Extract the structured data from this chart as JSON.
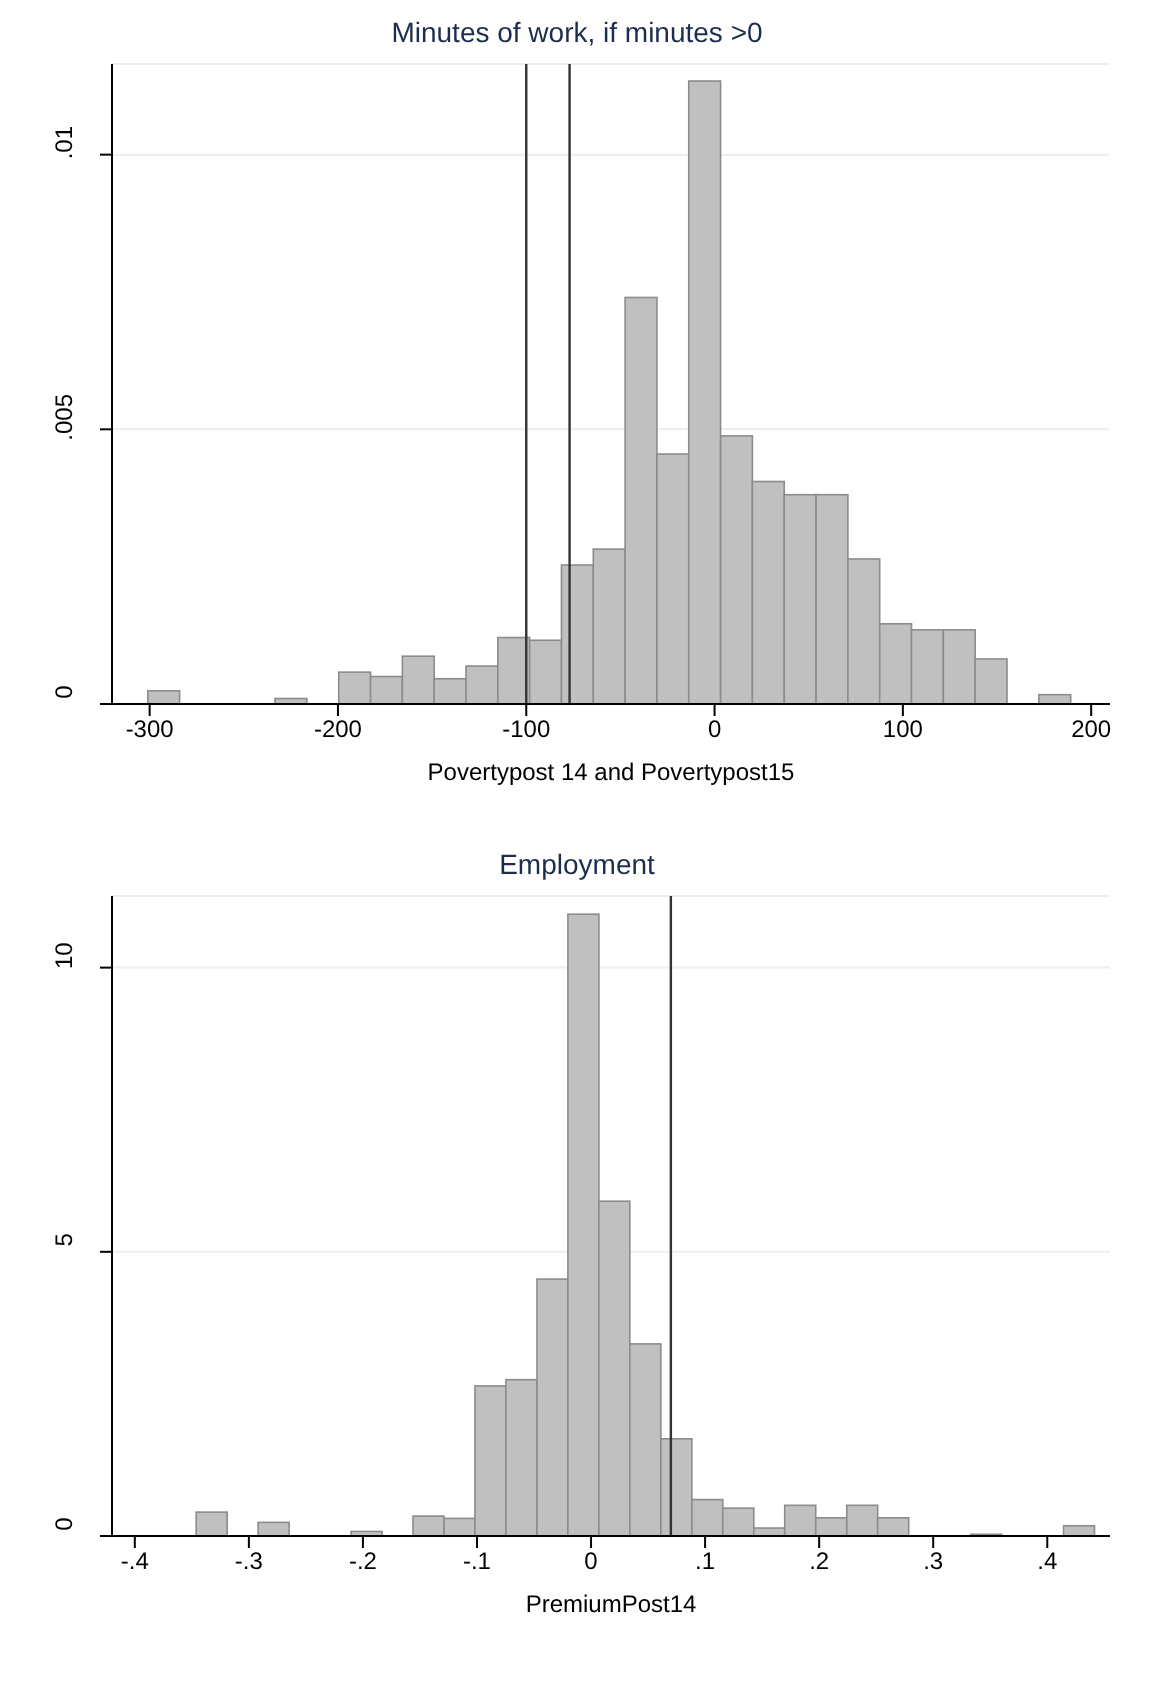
{
  "chart_data": [
    {
      "type": "histogram",
      "title": "Minutes of work, if minutes >0",
      "xlabel": "Povertypost 14 and Povertypost15",
      "color": "#c0c0c0",
      "grid": "y",
      "bins": [
        -301,
        -284.1,
        -267.2,
        -250.3,
        -233.4,
        -216.5,
        -199.6,
        -182.7,
        -165.8,
        -148.9,
        -132,
        -115.1,
        -98.2,
        -81.3,
        -64.4,
        -47.5,
        -30.6,
        -13.7,
        3.2,
        20.1,
        37,
        53.9,
        70.8,
        87.7,
        104.6,
        121.5,
        138.4,
        155.3,
        172.2,
        189.1
      ],
      "values": [
        0.00024,
        0,
        0,
        0,
        0.0001,
        0,
        0.00058,
        0.0005,
        0.00087,
        0.00046,
        0.00069,
        0.00121,
        0.00116,
        0.00253,
        0.00282,
        0.0074,
        0.00455,
        0.01134,
        0.00488,
        0.00405,
        0.00381,
        0.00381,
        0.00264,
        0.00146,
        0.00135,
        0.00135,
        0.00082,
        0,
        0.00017
      ],
      "xlim": [
        -320,
        210
      ],
      "xticks": [
        -300,
        -200,
        -100,
        0,
        100,
        200
      ],
      "ylim": [
        0,
        0.01165
      ],
      "yticks": [
        0,
        {
          "value": 0.005,
          "label": ".005"
        },
        {
          "value": 0.01,
          "label": ".01"
        }
      ],
      "ref_lines": [
        {
          "axis": "x",
          "value": -100,
          "color": "#333333"
        },
        {
          "axis": "x",
          "value": -77,
          "color": "#333333"
        }
      ]
    },
    {
      "type": "histogram",
      "title": "Employment",
      "xlabel": "PremiumPost14",
      "color": "#c0c0c0",
      "grid": "y",
      "bins": [
        -0.3462,
        -0.319,
        -0.2919,
        -0.2647,
        -0.2376,
        -0.2104,
        -0.1832,
        -0.1561,
        -0.1289,
        -0.1018,
        -0.0746,
        -0.0474,
        -0.0203,
        0.0069,
        0.034,
        0.0612,
        0.0884,
        0.1155,
        0.1427,
        0.1698,
        0.197,
        0.2242,
        0.2513,
        0.2785,
        0.3056,
        0.3328,
        0.36,
        0.3871,
        0.4143,
        0.4414
      ],
      "values": [
        0.42,
        0,
        0.24,
        0,
        0,
        0.08,
        0,
        0.35,
        0.31,
        2.64,
        2.75,
        4.52,
        10.94,
        5.89,
        3.38,
        1.71,
        0.64,
        0.49,
        0.14,
        0.54,
        0.32,
        0.54,
        0.32,
        0,
        0,
        0.03,
        0,
        0,
        0.18
      ],
      "xlim": [
        -0.42,
        0.455
      ],
      "xticks": [
        {
          "value": -0.4,
          "label": "-.4"
        },
        {
          "value": -0.3,
          "label": "-.3"
        },
        {
          "value": -0.2,
          "label": "-.2"
        },
        {
          "value": -0.1,
          "label": "-.1"
        },
        0,
        {
          "value": 0.1,
          "label": ".1"
        },
        {
          "value": 0.2,
          "label": ".2"
        },
        {
          "value": 0.3,
          "label": ".3"
        },
        {
          "value": 0.4,
          "label": ".4"
        }
      ],
      "ylim": [
        0,
        11.26
      ],
      "yticks": [
        0,
        5,
        10
      ],
      "ref_lines": [
        {
          "axis": "x",
          "value": 0.07,
          "color": "#333333"
        }
      ]
    }
  ]
}
